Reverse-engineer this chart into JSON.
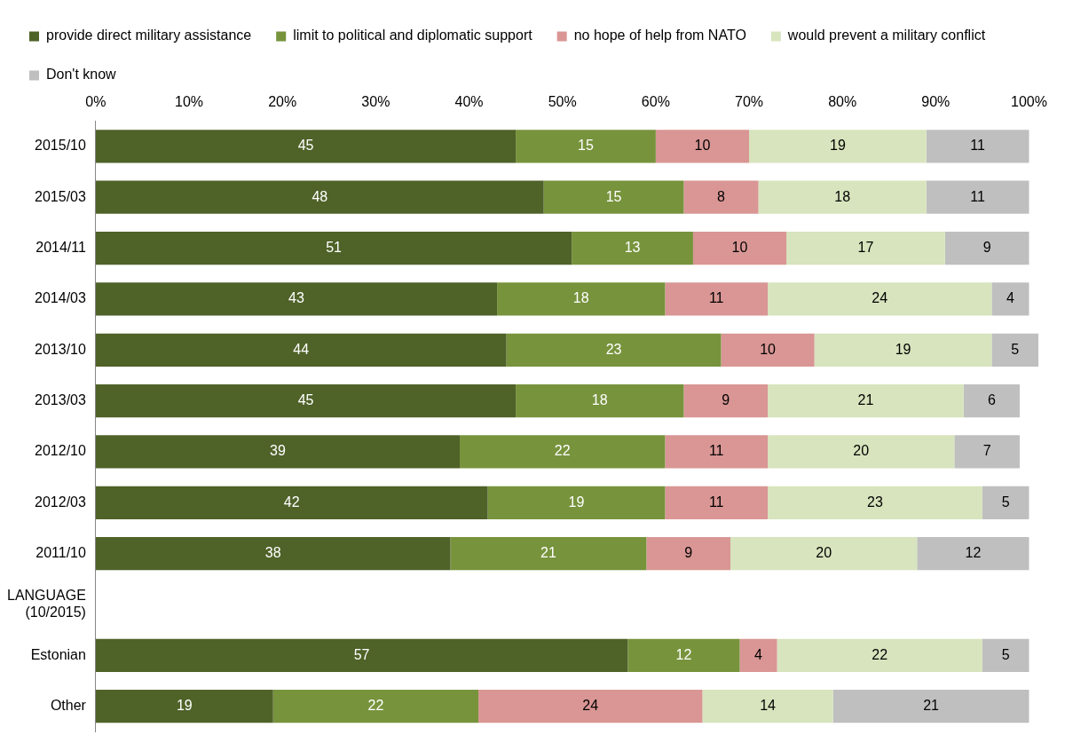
{
  "chart_data": {
    "type": "bar",
    "orientation": "horizontal",
    "stacked": true,
    "categories": [
      "2015/10",
      "2015/03",
      "2014/11",
      "2014/03",
      "2013/10",
      "2013/03",
      "2012/10",
      "2012/03",
      "2011/10",
      "LANGUAGE (10/2015)",
      "Estonian",
      "Other"
    ],
    "series": [
      {
        "name": "provide direct military assistance",
        "color": "#4f6228",
        "values": [
          45,
          48,
          51,
          43,
          44,
          45,
          39,
          42,
          38,
          null,
          57,
          19
        ]
      },
      {
        "name": "limit to political and diplomatic support",
        "color": "#77933c",
        "values": [
          15,
          15,
          13,
          18,
          23,
          18,
          22,
          19,
          21,
          null,
          12,
          22
        ]
      },
      {
        "name": "no hope of help from NATO",
        "color": "#d99694",
        "values": [
          10,
          8,
          10,
          11,
          10,
          9,
          11,
          11,
          9,
          null,
          4,
          24
        ]
      },
      {
        "name": "would prevent a military conflict",
        "color": "#d7e4bd",
        "values": [
          19,
          18,
          17,
          24,
          19,
          21,
          20,
          23,
          20,
          null,
          22,
          14
        ]
      },
      {
        "name": "Don't know",
        "color": "#bfbfbf",
        "values": [
          11,
          11,
          9,
          4,
          5,
          6,
          7,
          5,
          12,
          null,
          5,
          21
        ]
      }
    ],
    "xlim": [
      0,
      101
    ],
    "xticks": [
      {
        "value": 0,
        "label": "0%"
      },
      {
        "value": 10,
        "label": "10%"
      },
      {
        "value": 20,
        "label": "20%"
      },
      {
        "value": 30,
        "label": "30%"
      },
      {
        "value": 40,
        "label": "40%"
      },
      {
        "value": 50,
        "label": "50%"
      },
      {
        "value": 60,
        "label": "60%"
      },
      {
        "value": 70,
        "label": "70%"
      },
      {
        "value": 80,
        "label": "80%"
      },
      {
        "value": 90,
        "label": "90%"
      },
      {
        "value": 100,
        "label": "100%"
      }
    ],
    "data_labels": true,
    "legend": "top",
    "grid": false
  }
}
